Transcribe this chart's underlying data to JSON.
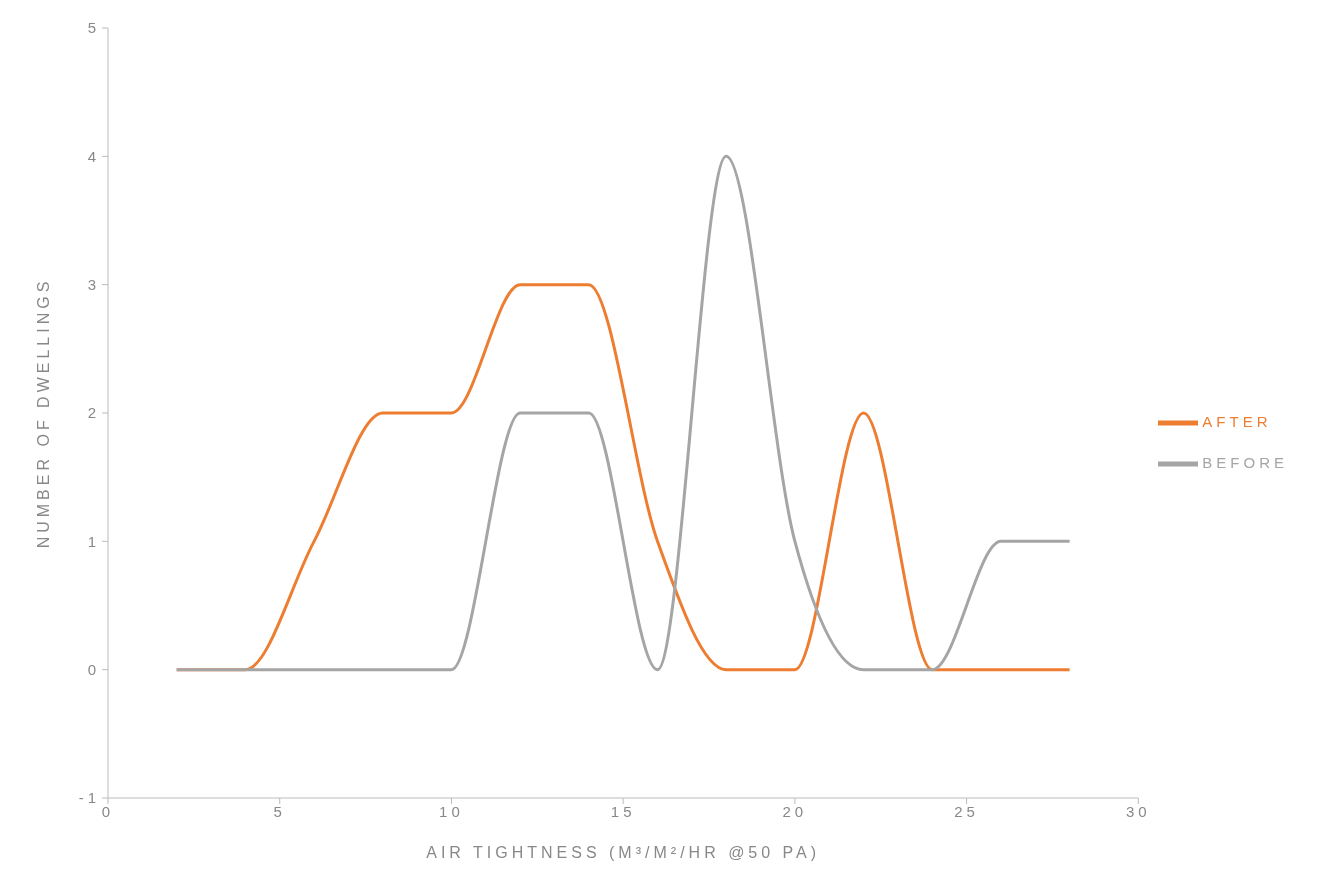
{
  "chart_data": {
    "type": "line",
    "xlabel": "AIR TIGHTNESS (M³/M²/HR @50 PA)",
    "ylabel": "NUMBER OF DWELLINGS",
    "x": [
      2,
      4,
      6,
      8,
      10,
      12,
      14,
      16,
      18,
      20,
      22,
      24,
      26,
      28
    ],
    "series": [
      {
        "name": "AFTER",
        "color": "#ed7d31",
        "values": [
          0,
          0,
          1,
          2,
          2,
          3,
          3,
          1,
          0,
          0,
          2,
          0,
          0,
          0
        ]
      },
      {
        "name": "BEFORE",
        "color": "#a5a5a5",
        "values": [
          0,
          0,
          0,
          0,
          0,
          2,
          2,
          0,
          4,
          1,
          0,
          0,
          1,
          1
        ]
      }
    ],
    "xlim": [
      0,
      30
    ],
    "xticks": [
      0,
      5,
      10,
      15,
      20,
      25,
      30
    ],
    "ylim": [
      -1,
      5
    ],
    "yticks": [
      -1,
      0,
      1,
      2,
      3,
      4,
      5
    ],
    "grid": false,
    "legend": "right",
    "marker": "none",
    "line_style": "solid"
  }
}
